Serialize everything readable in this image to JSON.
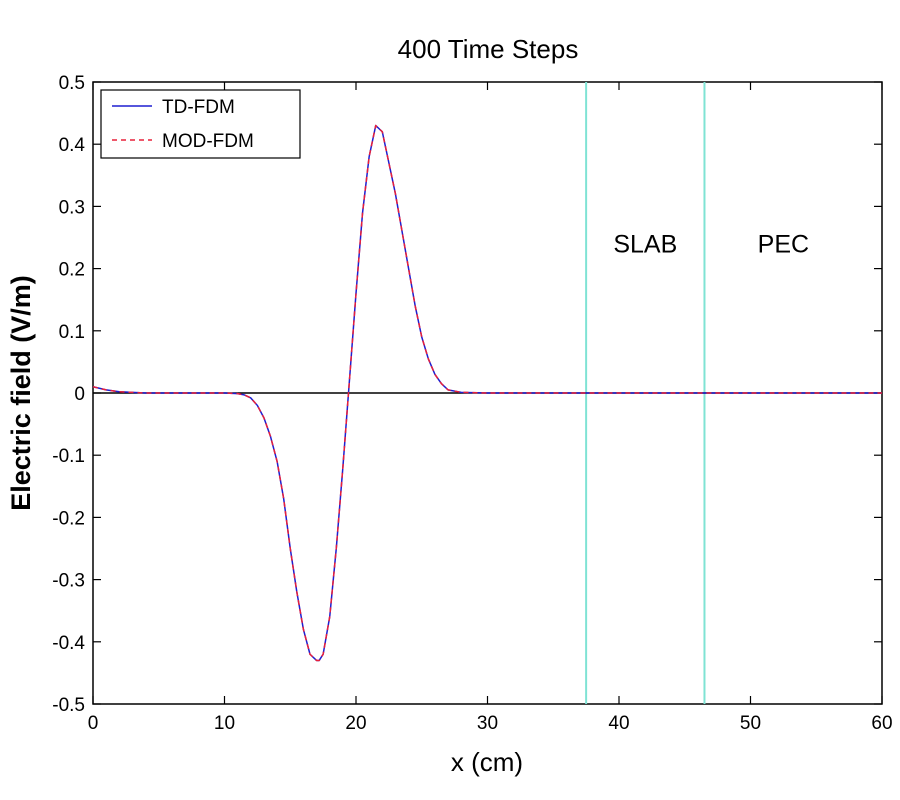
{
  "chart_data": {
    "type": "line",
    "title": "400 Time Steps",
    "xlabel": "x (cm)",
    "ylabel": "Electric field (V/m)",
    "xlim": [
      0,
      60
    ],
    "ylim": [
      -0.5,
      0.5
    ],
    "x_ticks": [
      0,
      10,
      20,
      30,
      40,
      50,
      60
    ],
    "y_ticks": [
      0.5,
      0.4,
      0.3,
      0.2,
      0.1,
      0,
      -0.1,
      -0.2,
      -0.3,
      -0.4,
      -0.5
    ],
    "y_tick_labels": [
      "0.5",
      "0.4",
      "0.3",
      "0.2",
      "0.1",
      "0",
      "-0.1",
      "-0.2",
      "-0.3",
      "-0.4",
      "-0.5"
    ],
    "grid": false,
    "legend_position": "top-left",
    "zero_line": true,
    "series": [
      {
        "name": "TD-FDM",
        "color": "#1f1fd0",
        "style": "solid",
        "x": [
          0,
          1,
          2,
          3,
          4,
          5,
          6,
          8,
          10,
          11,
          11.5,
          12,
          12.5,
          13,
          13.5,
          14,
          14.5,
          15,
          15.5,
          16,
          16.5,
          17,
          17.2,
          17.5,
          18,
          18.5,
          19,
          19.5,
          20,
          20.5,
          21,
          21.5,
          22,
          22.5,
          23,
          23.5,
          24,
          24.5,
          25,
          25.5,
          26,
          26.5,
          27,
          28,
          30,
          35,
          40,
          45,
          60
        ],
        "y": [
          0.01,
          0.005,
          0.002,
          0.001,
          0.0,
          0.0,
          0.0,
          0.0,
          0.0,
          -0.001,
          -0.003,
          -0.008,
          -0.02,
          -0.04,
          -0.07,
          -0.11,
          -0.17,
          -0.25,
          -0.32,
          -0.38,
          -0.42,
          -0.43,
          -0.43,
          -0.42,
          -0.36,
          -0.25,
          -0.12,
          0.02,
          0.16,
          0.29,
          0.38,
          0.43,
          0.42,
          0.37,
          0.32,
          0.26,
          0.2,
          0.14,
          0.09,
          0.055,
          0.03,
          0.015,
          0.005,
          0.001,
          0.0,
          0.0,
          0.0,
          0.0,
          0.0
        ]
      },
      {
        "name": "MOD-FDM",
        "color": "#e8203a",
        "style": "dashed",
        "x": [
          0,
          1,
          2,
          3,
          4,
          5,
          6,
          8,
          10,
          11,
          11.5,
          12,
          12.5,
          13,
          13.5,
          14,
          14.5,
          15,
          15.5,
          16,
          16.5,
          17,
          17.2,
          17.5,
          18,
          18.5,
          19,
          19.5,
          20,
          20.5,
          21,
          21.5,
          22,
          22.5,
          23,
          23.5,
          24,
          24.5,
          25,
          25.5,
          26,
          26.5,
          27,
          28,
          30,
          35,
          40,
          45,
          60
        ],
        "y": [
          0.01,
          0.005,
          0.002,
          0.001,
          0.0,
          0.0,
          0.0,
          0.0,
          0.0,
          -0.001,
          -0.003,
          -0.008,
          -0.02,
          -0.04,
          -0.07,
          -0.11,
          -0.17,
          -0.25,
          -0.32,
          -0.38,
          -0.42,
          -0.43,
          -0.43,
          -0.42,
          -0.36,
          -0.25,
          -0.12,
          0.02,
          0.16,
          0.29,
          0.38,
          0.43,
          0.42,
          0.37,
          0.32,
          0.26,
          0.2,
          0.14,
          0.09,
          0.055,
          0.03,
          0.015,
          0.005,
          0.001,
          0.0,
          0.0,
          0.0,
          0.0,
          0.0
        ]
      }
    ],
    "boundaries": [
      {
        "x": 37.5,
        "color": "#7fe3d4"
      },
      {
        "x": 46.5,
        "color": "#7fe3d4"
      }
    ],
    "annotations": [
      {
        "text": "SLAB",
        "x": 42,
        "y": 0.24
      },
      {
        "text": "PEC",
        "x": 52.5,
        "y": 0.24
      }
    ]
  }
}
